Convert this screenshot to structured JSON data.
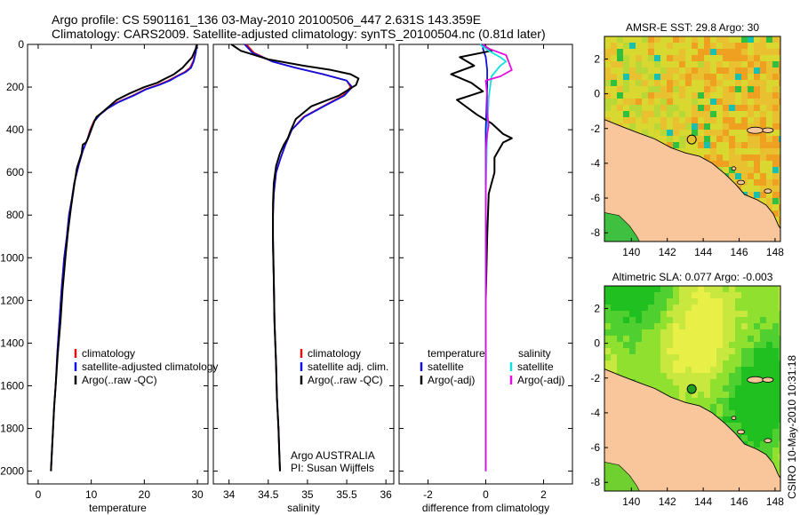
{
  "header": {
    "line1": "Argo profile: CS 5901161_136 03-May-2010 20100506_447 2.631S 143.359E",
    "line2": "Climatology: CARS2009. Satellite-adjusted climatology: synTS_20100504.nc (0.81d later)"
  },
  "credit": "CSIRO 10-May-2010 10:31:18",
  "chart_data": [
    {
      "type": "line",
      "xlabel": "temperature",
      "ylabel": "",
      "xlim": [
        -2,
        32
      ],
      "ylim": [
        2060,
        0
      ],
      "xticks": [
        0,
        10,
        20,
        30
      ],
      "yticks": [
        0,
        200,
        400,
        600,
        800,
        1000,
        1200,
        1400,
        1600,
        1800,
        2000
      ],
      "legend": [
        "climatology",
        "satellite-adjusted climatology",
        "Argo(..raw -QC)"
      ],
      "series": [
        {
          "name": "climatology",
          "color": "#e01010",
          "x": [
            29.8,
            29.6,
            29.2,
            28.6,
            27.6,
            26.0,
            24.5,
            22.5,
            20.2,
            17.8,
            15.0,
            13.0,
            11.5,
            10.5,
            9.8,
            9.2,
            8.4,
            7.7,
            6.8,
            6.3,
            5.8,
            5.4,
            4.9,
            4.4,
            4.0,
            3.6,
            3.3,
            3.0,
            2.8,
            2.6,
            2.5,
            2.4
          ],
          "y": [
            0,
            40,
            80,
            110,
            130,
            150,
            170,
            190,
            210,
            240,
            270,
            300,
            330,
            360,
            400,
            450,
            500,
            560,
            650,
            730,
            800,
            900,
            1000,
            1150,
            1300,
            1450,
            1600,
            1700,
            1800,
            1900,
            1950,
            2000
          ]
        },
        {
          "name": "satellite-adjusted climatology",
          "color": "#1010e0",
          "x": [
            29.9,
            29.7,
            29.3,
            28.8,
            27.8,
            26.2,
            24.8,
            22.8,
            20.4,
            18.0,
            15.2,
            13.1,
            11.6,
            10.6,
            9.9,
            9.2,
            8.4,
            7.7,
            6.8,
            6.3,
            5.8,
            5.4,
            4.9,
            4.4,
            4.0,
            3.6,
            3.3,
            3.0,
            2.8,
            2.6,
            2.5,
            2.4
          ],
          "y": [
            0,
            40,
            80,
            110,
            130,
            150,
            170,
            190,
            210,
            240,
            270,
            300,
            330,
            360,
            400,
            450,
            500,
            560,
            650,
            730,
            800,
            900,
            1000,
            1150,
            1300,
            1450,
            1600,
            1700,
            1800,
            1900,
            1950,
            2000
          ]
        },
        {
          "name": "Argo(..raw -QC)",
          "color": "#000000",
          "x": [
            29.9,
            29.7,
            29.0,
            27.2,
            25.6,
            24.0,
            22.4,
            20.0,
            17.2,
            14.8,
            12.0,
            11.0,
            10.6,
            10.0,
            9.4,
            9.0,
            8.4,
            8.2,
            7.3,
            6.8,
            6.2,
            5.6,
            5.2,
            4.6,
            4.2,
            3.7,
            3.3,
            3.0,
            2.8,
            2.6,
            2.5,
            2.4
          ],
          "y": [
            0,
            20,
            60,
            110,
            140,
            160,
            180,
            200,
            230,
            260,
            320,
            340,
            360,
            400,
            440,
            460,
            470,
            510,
            580,
            660,
            760,
            880,
            980,
            1150,
            1300,
            1450,
            1600,
            1700,
            1800,
            1900,
            1950,
            2000
          ]
        }
      ]
    },
    {
      "type": "line",
      "xlabel": "salinity",
      "ylabel": "",
      "xlim": [
        33.8,
        36.1
      ],
      "ylim": [
        2060,
        0
      ],
      "xticks": [
        34,
        34.5,
        35,
        35.5,
        36
      ],
      "yticks": [],
      "legend": [
        "climatology",
        "satellite adj. clim.",
        "Argo(..raw -QC)"
      ],
      "annotation": [
        "Argo AUSTRALIA",
        "PI: Susan Wijffels"
      ],
      "series": [
        {
          "name": "climatology",
          "color": "#e01010",
          "x": [
            34.22,
            34.32,
            34.55,
            34.85,
            35.2,
            35.5,
            35.55,
            35.45,
            35.2,
            34.95,
            34.8,
            34.72,
            34.66,
            34.6,
            34.57,
            34.56,
            34.56,
            34.57,
            34.58,
            34.6,
            34.61,
            34.63,
            34.64,
            34.65
          ],
          "y": [
            0,
            40,
            80,
            110,
            140,
            170,
            200,
            240,
            290,
            340,
            400,
            470,
            530,
            600,
            700,
            800,
            950,
            1100,
            1300,
            1500,
            1650,
            1800,
            1900,
            2000
          ]
        },
        {
          "name": "satellite adj. clim.",
          "color": "#1010e0",
          "x": [
            34.2,
            34.3,
            34.55,
            34.85,
            35.2,
            35.5,
            35.57,
            35.47,
            35.21,
            34.96,
            34.8,
            34.72,
            34.66,
            34.6,
            34.57,
            34.56,
            34.56,
            34.57,
            34.58,
            34.6,
            34.61,
            34.63,
            34.64,
            34.65
          ],
          "y": [
            0,
            40,
            80,
            110,
            140,
            170,
            200,
            240,
            290,
            340,
            400,
            470,
            530,
            600,
            700,
            800,
            950,
            1100,
            1300,
            1500,
            1650,
            1800,
            1900,
            2000
          ]
        },
        {
          "name": "Argo(..raw -QC)",
          "color": "#000000",
          "x": [
            34.03,
            34.15,
            34.5,
            34.95,
            35.3,
            35.55,
            35.65,
            35.62,
            35.4,
            35.05,
            34.85,
            34.78,
            34.75,
            34.7,
            34.65,
            34.6,
            34.57,
            34.56,
            34.56,
            34.57,
            34.58,
            34.6,
            34.61,
            34.63,
            34.64,
            34.65
          ],
          "y": [
            0,
            30,
            70,
            100,
            120,
            140,
            160,
            190,
            240,
            290,
            350,
            410,
            440,
            470,
            510,
            570,
            650,
            750,
            900,
            1100,
            1300,
            1500,
            1650,
            1800,
            1900,
            2000
          ]
        }
      ]
    },
    {
      "type": "line",
      "xlabel": "difference from climatology",
      "ylabel": "",
      "xlim": [
        -3,
        3
      ],
      "ylim": [
        2060,
        0
      ],
      "xticks": [
        -2,
        0,
        2
      ],
      "yticks": [],
      "legend_titles": [
        "temperature",
        "salinity"
      ],
      "legend": [
        "satellite",
        "Argo(-adj)",
        "satellite",
        "Argo(-adj)"
      ],
      "series": [
        {
          "name": "temperature satellite",
          "color": "#1010e0",
          "x": [
            -0.1,
            -0.1,
            0.0,
            0.05,
            0.05,
            0.0,
            0.0,
            0.0,
            0.0
          ],
          "y": [
            0,
            20,
            60,
            120,
            200,
            400,
            800,
            1500,
            2000
          ]
        },
        {
          "name": "temperature Argo(-adj)",
          "color": "#000000",
          "x": [
            -0.1,
            0.2,
            -0.9,
            -0.4,
            -1.2,
            -0.5,
            -0.1,
            -1.0,
            -0.3,
            0.2,
            0.6,
            0.9,
            0.6,
            0.3,
            0.3,
            0.1,
            0.05,
            0.0,
            0.0,
            0.0
          ],
          "y": [
            0,
            30,
            60,
            100,
            140,
            180,
            220,
            260,
            330,
            370,
            420,
            440,
            460,
            530,
            600,
            700,
            900,
            1200,
            1600,
            2000
          ]
        },
        {
          "name": "salinity satellite",
          "color": "#10e0e0",
          "x": [
            -0.2,
            0.1,
            0.5,
            0.7,
            0.5,
            0.2,
            0.1,
            0.05,
            0.0,
            0.0,
            0.0
          ],
          "y": [
            0,
            30,
            60,
            80,
            100,
            150,
            250,
            400,
            700,
            1200,
            2000
          ]
        },
        {
          "name": "salinity Argo(-adj)",
          "color": "#e010e0",
          "x": [
            -0.1,
            0.1,
            0.7,
            0.9,
            0.5,
            0.0,
            0.05,
            0.05,
            0.1,
            0.05,
            0.0,
            0.0,
            0.0
          ],
          "y": [
            0,
            20,
            50,
            120,
            150,
            170,
            240,
            320,
            380,
            420,
            500,
            800,
            2000
          ]
        }
      ]
    },
    {
      "type": "heatmap",
      "title": "AMSR-E SST: 29.8 Argo: 30",
      "xlim": [
        138.5,
        148.3
      ],
      "ylim": [
        -8.5,
        3.3
      ],
      "xticks": [
        140,
        142,
        144,
        146,
        148
      ],
      "yticks": [
        2,
        0,
        -2,
        -4,
        -6,
        -8
      ],
      "argo_position": {
        "lon": 143.359,
        "lat": -2.631
      }
    },
    {
      "type": "heatmap",
      "title": "Altimetric SLA: 0.077 Argo: -0.003",
      "xlim": [
        138.5,
        148.3
      ],
      "ylim": [
        -8.5,
        3.3
      ],
      "xticks": [
        140,
        142,
        144,
        146,
        148
      ],
      "yticks": [
        2,
        0,
        -2,
        -4,
        -6,
        -8
      ],
      "argo_position": {
        "lon": 143.359,
        "lat": -2.631
      }
    }
  ]
}
